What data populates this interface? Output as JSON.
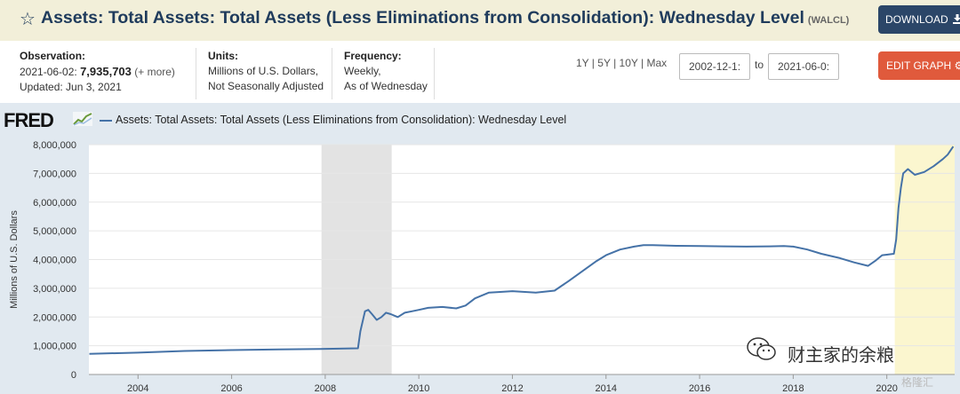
{
  "header": {
    "star_icon": "star-outline-icon",
    "title": "Assets: Total Assets: Total Assets (Less Eliminations from Consolidation): Wednesday Level",
    "series_code": "(WALCL)",
    "download_label": "DOWNLOAD"
  },
  "observation": {
    "label": "Observation:",
    "date": "2021-06-02:",
    "value": "7,935,703",
    "more": "(+ more)",
    "updated": "Updated: Jun 3, 2021"
  },
  "units": {
    "label": "Units:",
    "line1": "Millions of U.S. Dollars,",
    "line2": "Not Seasonally Adjusted"
  },
  "frequency": {
    "label": "Frequency:",
    "line1": "Weekly,",
    "line2": "As of Wednesday"
  },
  "controls": {
    "ranges": [
      "1Y",
      "5Y",
      "10Y",
      "Max"
    ],
    "start_date": "2002-12-1:",
    "to_label": "to",
    "end_date": "2021-06-0:",
    "edit_label": "EDIT GRAPH"
  },
  "brand": {
    "logo": "FRED"
  },
  "watermark": {
    "text": "财主家的余粮",
    "corner": "格隆汇"
  },
  "colors": {
    "line": "#4572a7",
    "recession": "#e3e3e3",
    "highlight": "#fbf6cf",
    "plot_bg": "#ffffff"
  },
  "chart_data": {
    "type": "line",
    "title": "",
    "ylabel": "Millions of U.S. Dollars",
    "xlabel": "",
    "ylim": [
      0,
      8000000
    ],
    "xlim": [
      2002.95,
      2021.45
    ],
    "yticks": [
      0,
      1000000,
      2000000,
      3000000,
      4000000,
      5000000,
      6000000,
      7000000,
      8000000
    ],
    "ytick_labels": [
      "0",
      "1,000,000",
      "2,000,000",
      "3,000,000",
      "4,000,000",
      "5,000,000",
      "6,000,000",
      "7,000,000",
      "8,000,000"
    ],
    "xticks": [
      2004,
      2006,
      2008,
      2010,
      2012,
      2014,
      2016,
      2018,
      2020
    ],
    "xtick_labels": [
      "2004",
      "2006",
      "2008",
      "2010",
      "2012",
      "2014",
      "2016",
      "2018",
      "2020"
    ],
    "grid": true,
    "legend": "top-left",
    "shaded_periods": [
      {
        "start": 2007.92,
        "end": 2009.42,
        "kind": "recession"
      },
      {
        "start": 2020.17,
        "end": 2021.45,
        "kind": "highlight"
      }
    ],
    "series": [
      {
        "name": "Assets: Total Assets: Total Assets (Less Eliminations from Consolidation): Wednesday Level",
        "x": [
          2002.96,
          2004.0,
          2005.0,
          2006.0,
          2007.0,
          2007.9,
          2008.3,
          2008.7,
          2008.75,
          2008.85,
          2008.92,
          2009.0,
          2009.1,
          2009.2,
          2009.3,
          2009.4,
          2009.55,
          2009.7,
          2009.85,
          2010.0,
          2010.2,
          2010.5,
          2010.8,
          2011.0,
          2011.2,
          2011.5,
          2011.7,
          2012.0,
          2012.5,
          2012.9,
          2013.2,
          2013.5,
          2013.8,
          2014.0,
          2014.3,
          2014.6,
          2014.8,
          2015.0,
          2015.5,
          2016.0,
          2016.5,
          2017.0,
          2017.5,
          2017.8,
          2018.0,
          2018.3,
          2018.6,
          2019.0,
          2019.3,
          2019.6,
          2019.75,
          2019.9,
          2020.0,
          2020.15,
          2020.2,
          2020.25,
          2020.3,
          2020.35,
          2020.45,
          2020.6,
          2020.8,
          2021.0,
          2021.2,
          2021.3,
          2021.42
        ],
        "values": [
          720000,
          760000,
          820000,
          850000,
          870000,
          890000,
          900000,
          910000,
          1500000,
          2200000,
          2250000,
          2100000,
          1900000,
          2000000,
          2150000,
          2100000,
          2000000,
          2150000,
          2200000,
          2250000,
          2320000,
          2350000,
          2300000,
          2400000,
          2650000,
          2850000,
          2870000,
          2900000,
          2850000,
          2920000,
          3250000,
          3600000,
          3950000,
          4150000,
          4350000,
          4450000,
          4500000,
          4500000,
          4480000,
          4470000,
          4460000,
          4450000,
          4460000,
          4470000,
          4450000,
          4350000,
          4200000,
          4050000,
          3900000,
          3780000,
          3950000,
          4150000,
          4170000,
          4200000,
          4700000,
          5800000,
          6500000,
          7000000,
          7150000,
          6950000,
          7050000,
          7250000,
          7500000,
          7650000,
          7935703
        ]
      }
    ]
  }
}
